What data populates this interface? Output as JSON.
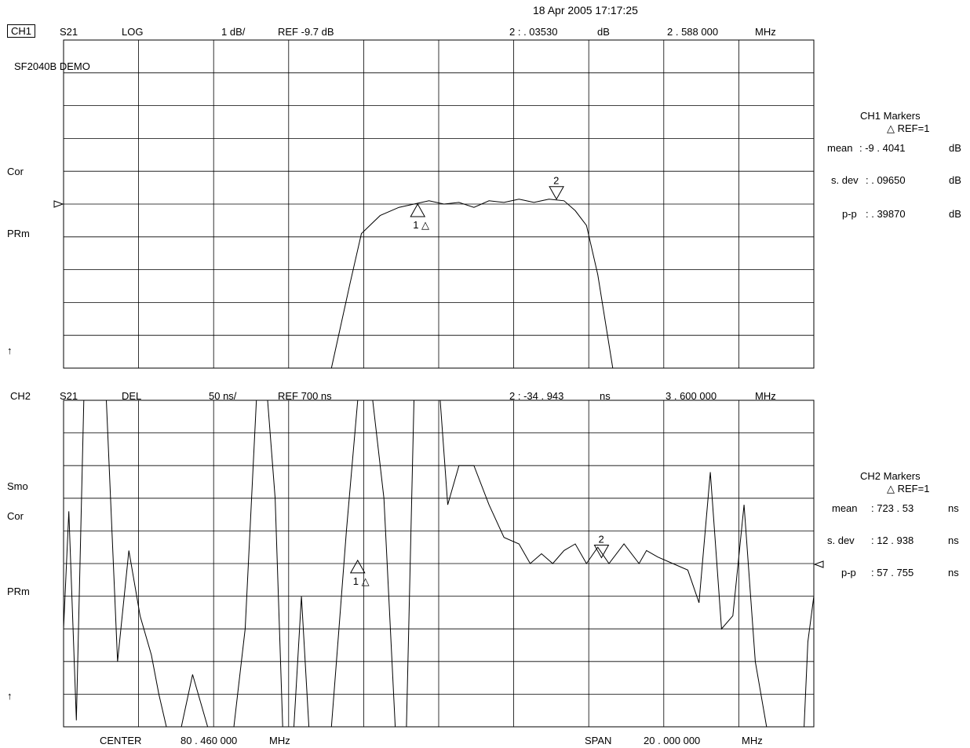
{
  "timestamp": "18 Apr 2005 17:17:25",
  "ch1": {
    "channel": "CH1",
    "param": "S21",
    "format": "LOG",
    "scale": "1 dB/",
    "ref": "REF -9.7 dB",
    "marker_readout": "2 : . 03530",
    "marker_unit": "dB",
    "marker_freq": "2 . 588  000",
    "marker_freq_unit": "MHz",
    "label": "SF2040B DEMO",
    "side_labels": [
      "Cor",
      "PRm",
      "↑"
    ],
    "stats_title": "CH1   Markers",
    "stats_ref": "△ REF=1",
    "stats": [
      {
        "label": "mean",
        "value": ": -9  . 4041",
        "unit": "dB"
      },
      {
        "label": "s. dev",
        "value": ": . 09650",
        "unit": "dB"
      },
      {
        "label": "p-p",
        "value": ": . 39870",
        "unit": "dB"
      }
    ],
    "marker1_label": "1 △",
    "marker2_label": "2"
  },
  "ch2": {
    "channel": "CH2",
    "param": "S21",
    "format": "DEL",
    "scale": "50 ns/",
    "ref": "REF 700 ns",
    "marker_readout": "2 : -34   . 943",
    "marker_unit": "ns",
    "marker_freq": "3 . 600   000",
    "marker_freq_unit": "MHz",
    "side_labels": [
      "Smo",
      "Cor",
      "PRm",
      "↑"
    ],
    "stats_title": "CH2   Markers",
    "stats_ref": "△ REF=1",
    "stats": [
      {
        "label": "mean",
        "value": ": 723  . 53",
        "unit": "ns"
      },
      {
        "label": "s. dev",
        "value": ": 12  . 938",
        "unit": "ns"
      },
      {
        "label": "p-p",
        "value": ": 57  . 755",
        "unit": "ns"
      }
    ],
    "marker1_label": "1 △",
    "marker2_label": "2"
  },
  "footer": {
    "center_label": "CENTER",
    "center_value": "80  . 460    000",
    "center_unit": "MHz",
    "span_label": "SPAN",
    "span_value": "20  . 000    000",
    "span_unit": "MHz"
  },
  "chart_data": [
    {
      "type": "line",
      "title": "",
      "xlabel": "",
      "ylabel": "",
      "xlim": [
        70.46,
        90.46
      ],
      "ylim": [
        -19.7,
        0.3
      ],
      "grid": true,
      "x_unit": "MHz",
      "y_unit": "dB",
      "series": [
        {
          "name": "",
          "points": [
            [
              70.46,
              -19.7
            ],
            [
              77.6,
              -19.7
            ],
            [
              78.1,
              -14.5
            ],
            [
              78.4,
              -11.5
            ],
            [
              78.9,
              -10.4
            ],
            [
              79.4,
              -9.9
            ],
            [
              79.8,
              -9.7
            ],
            [
              80.2,
              -9.5
            ],
            [
              80.6,
              -9.7
            ],
            [
              81.0,
              -9.6
            ],
            [
              81.4,
              -9.9
            ],
            [
              81.8,
              -9.5
            ],
            [
              82.2,
              -9.6
            ],
            [
              82.6,
              -9.4
            ],
            [
              83.0,
              -9.6
            ],
            [
              83.4,
              -9.4
            ],
            [
              83.8,
              -9.5
            ],
            [
              84.1,
              -10.1
            ],
            [
              84.4,
              -11.0
            ],
            [
              84.7,
              -14.0
            ],
            [
              85.1,
              -19.7
            ],
            [
              90.46,
              -19.7
            ]
          ]
        }
      ],
      "markers": [
        {
          "id": 1,
          "x": 79.9,
          "y": -9.7,
          "reference": true
        },
        {
          "id": 2,
          "x": 83.6,
          "y": -9.4
        }
      ]
    },
    {
      "type": "line",
      "title": "",
      "xlabel": "",
      "ylabel": "",
      "xlim": [
        70.46,
        90.46
      ],
      "ylim": [
        450,
        950
      ],
      "grid": true,
      "x_unit": "MHz",
      "y_unit": "ns",
      "series": [
        {
          "name": "",
          "points": [
            [
              70.46,
              600
            ],
            [
              70.6,
              780
            ],
            [
              70.8,
              460
            ],
            [
              71.0,
              950
            ],
            [
              71.6,
              950
            ],
            [
              71.9,
              550
            ],
            [
              72.2,
              720
            ],
            [
              72.5,
              620
            ],
            [
              72.8,
              560
            ],
            [
              73.0,
              500
            ],
            [
              73.2,
              450
            ],
            [
              73.6,
              450
            ],
            [
              73.9,
              530
            ],
            [
              74.3,
              450
            ],
            [
              75.0,
              450
            ],
            [
              75.3,
              600
            ],
            [
              75.6,
              950
            ],
            [
              75.9,
              950
            ],
            [
              76.1,
              800
            ],
            [
              76.3,
              450
            ],
            [
              76.6,
              450
            ],
            [
              76.8,
              650
            ],
            [
              77.0,
              450
            ],
            [
              77.6,
              450
            ],
            [
              77.8,
              600
            ],
            [
              78.0,
              750
            ],
            [
              78.3,
              950
            ],
            [
              78.7,
              950
            ],
            [
              79.0,
              800
            ],
            [
              79.3,
              450
            ],
            [
              79.6,
              450
            ],
            [
              79.8,
              950
            ],
            [
              80.5,
              950
            ],
            [
              80.7,
              790
            ],
            [
              81.0,
              850
            ],
            [
              81.4,
              850
            ],
            [
              81.8,
              790
            ],
            [
              82.2,
              740
            ],
            [
              82.6,
              730
            ],
            [
              82.9,
              700
            ],
            [
              83.2,
              715
            ],
            [
              83.5,
              700
            ],
            [
              83.8,
              720
            ],
            [
              84.1,
              730
            ],
            [
              84.4,
              700
            ],
            [
              84.7,
              725
            ],
            [
              85.0,
              700
            ],
            [
              85.4,
              730
            ],
            [
              85.8,
              700
            ],
            [
              86.0,
              720
            ],
            [
              86.3,
              710
            ],
            [
              86.7,
              700
            ],
            [
              87.1,
              690
            ],
            [
              87.4,
              640
            ],
            [
              87.7,
              840
            ],
            [
              88.0,
              600
            ],
            [
              88.3,
              620
            ],
            [
              88.6,
              790
            ],
            [
              88.9,
              550
            ],
            [
              89.2,
              450
            ],
            [
              90.2,
              450
            ],
            [
              90.3,
              580
            ],
            [
              90.46,
              650
            ]
          ]
        }
      ],
      "markers": [
        {
          "id": 1,
          "x": 78.3,
          "y": 705,
          "reference": true
        },
        {
          "id": 2,
          "x": 84.8,
          "y": 709
        }
      ]
    }
  ]
}
